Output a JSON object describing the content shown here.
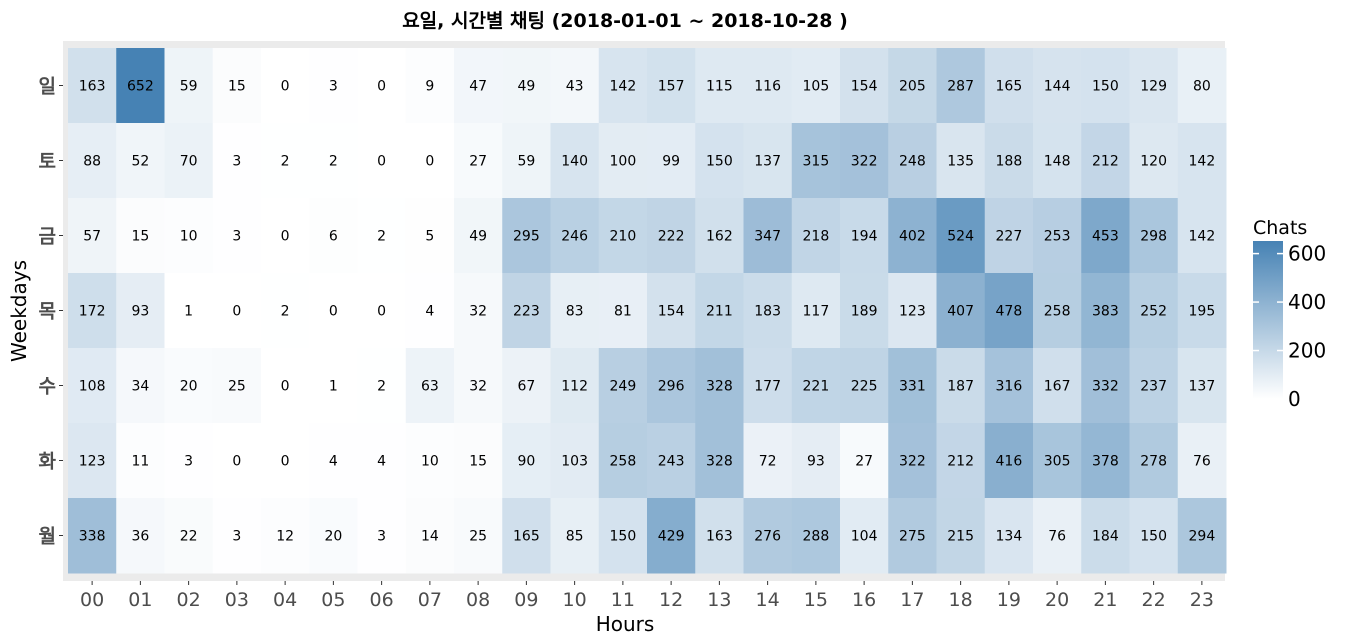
{
  "chart_data": {
    "type": "heatmap",
    "title": "요일, 시간별 채팅 (2018-01-01  ~ 2018-10-28 )",
    "xlabel": "Hours",
    "ylabel": "Weekdays",
    "x": [
      "00",
      "01",
      "02",
      "03",
      "04",
      "05",
      "06",
      "07",
      "08",
      "09",
      "10",
      "11",
      "12",
      "13",
      "14",
      "15",
      "16",
      "17",
      "18",
      "19",
      "20",
      "21",
      "22",
      "23"
    ],
    "y": [
      "일",
      "토",
      "금",
      "목",
      "수",
      "화",
      "월"
    ],
    "values": [
      [
        163,
        652,
        59,
        15,
        0,
        3,
        0,
        9,
        47,
        49,
        43,
        142,
        157,
        115,
        116,
        105,
        154,
        205,
        287,
        165,
        144,
        150,
        129,
        80
      ],
      [
        88,
        52,
        70,
        3,
        2,
        2,
        0,
        0,
        27,
        59,
        140,
        100,
        99,
        150,
        137,
        315,
        322,
        248,
        135,
        188,
        148,
        212,
        120,
        142
      ],
      [
        57,
        15,
        10,
        3,
        0,
        6,
        2,
        5,
        49,
        295,
        246,
        210,
        222,
        162,
        347,
        218,
        194,
        402,
        524,
        227,
        253,
        453,
        298,
        142
      ],
      [
        172,
        93,
        1,
        0,
        2,
        0,
        0,
        4,
        32,
        223,
        83,
        81,
        154,
        211,
        183,
        117,
        189,
        123,
        407,
        478,
        258,
        383,
        252,
        195
      ],
      [
        108,
        34,
        20,
        25,
        0,
        1,
        2,
        63,
        32,
        67,
        112,
        249,
        296,
        328,
        177,
        221,
        225,
        331,
        187,
        316,
        167,
        332,
        237,
        137
      ],
      [
        123,
        11,
        3,
        0,
        0,
        4,
        4,
        10,
        15,
        90,
        103,
        258,
        243,
        328,
        72,
        93,
        27,
        322,
        212,
        416,
        305,
        378,
        278,
        76
      ],
      [
        338,
        36,
        22,
        3,
        12,
        20,
        3,
        14,
        25,
        165,
        85,
        150,
        429,
        163,
        276,
        288,
        104,
        275,
        215,
        134,
        76,
        184,
        150,
        294
      ]
    ],
    "legend": {
      "title": "Chats",
      "ticks": [
        0,
        200,
        400,
        600
      ],
      "range": [
        0,
        652
      ],
      "low_color": "#ffffff",
      "high_color": "#4682b4",
      "placement": "right"
    },
    "colors": {
      "panel_background": "#ebebeb",
      "tick_mark": "#333333"
    }
  }
}
